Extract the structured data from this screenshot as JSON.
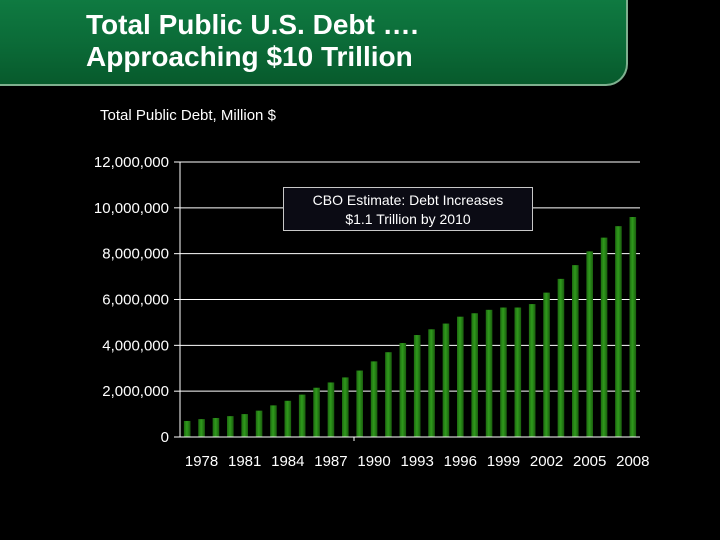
{
  "header": {
    "title_line1": "Total Public U.S. Debt ….",
    "title_line2": "Approaching $10 Trillion"
  },
  "colors": {
    "banner": "#0b6a37",
    "bar": "#2f9a1c",
    "background": "#000000",
    "text": "#ffffff"
  },
  "chart_data": {
    "type": "bar",
    "title": "Total Public Debt, Million $",
    "ylabel": "",
    "xlabel": "",
    "ylim": [
      0,
      12000000
    ],
    "yticks": [
      "0",
      "2,000,000",
      "4,000,000",
      "6,000,000",
      "8,000,000",
      "10,000,000",
      "12,000,000"
    ],
    "ytick_values": [
      0,
      2000000,
      4000000,
      6000000,
      8000000,
      10000000,
      12000000
    ],
    "xtick_labels": [
      "1978",
      "1981",
      "1984",
      "1987",
      "1990",
      "1993",
      "1996",
      "1999",
      "2002",
      "2005",
      "2008"
    ],
    "grid": "horizontal",
    "categories": [
      1977,
      1978,
      1979,
      1980,
      1981,
      1982,
      1983,
      1984,
      1985,
      1986,
      1987,
      1988,
      1989,
      1990,
      1991,
      1992,
      1993,
      1994,
      1995,
      1996,
      1997,
      1998,
      1999,
      2000,
      2001,
      2002,
      2003,
      2004,
      2005,
      2006,
      2007,
      2008
    ],
    "values": [
      700000,
      780000,
      830000,
      910000,
      1000000,
      1150000,
      1380000,
      1580000,
      1850000,
      2150000,
      2380000,
      2600000,
      2900000,
      3300000,
      3700000,
      4100000,
      4450000,
      4700000,
      4950000,
      5250000,
      5400000,
      5550000,
      5650000,
      5650000,
      5800000,
      6300000,
      6900000,
      7500000,
      8100000,
      8700000,
      9200000,
      9600000
    ],
    "annotation": {
      "line1": "CBO Estimate: Debt Increases",
      "line2": "$1.1 Trillion by 2010"
    }
  }
}
